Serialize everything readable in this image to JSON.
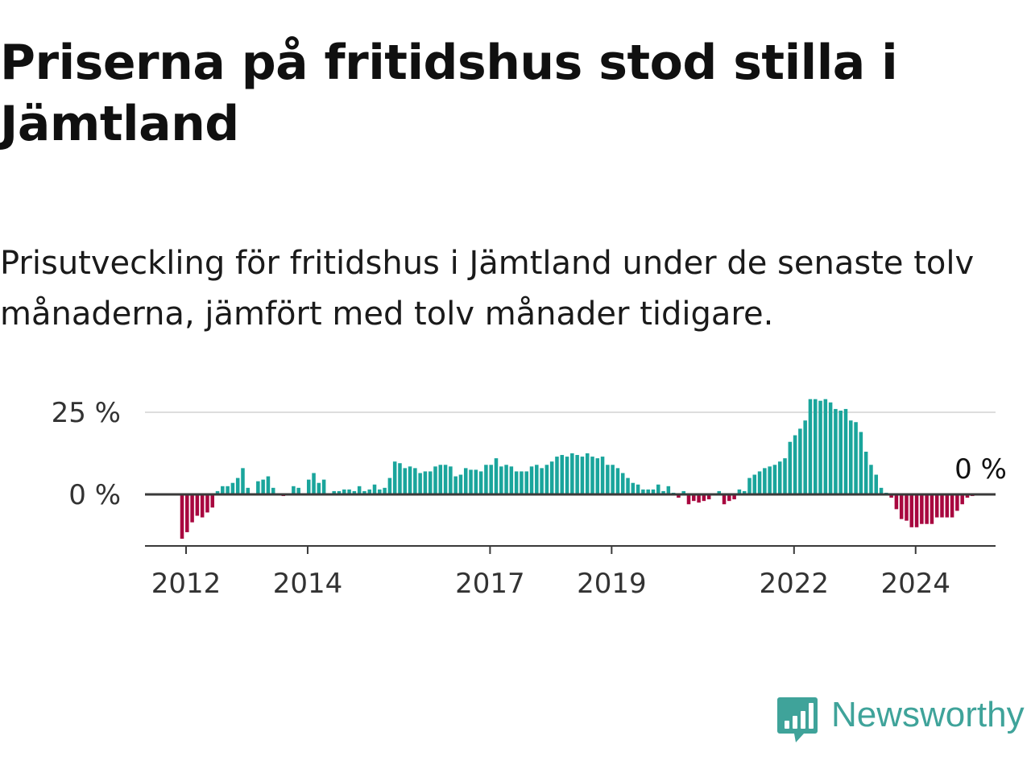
{
  "title": "Priserna på fritidshus stod stilla i Jämtland",
  "subtitle": "Prisutveckling för fritidshus i Jämtland under de senaste tolv månaderna, jämfört med tolv månader tidigare.",
  "brand": {
    "name": "Newsworthy",
    "icon": "bar-chart-speech-bubble-icon",
    "color": "#3fa39a"
  },
  "colors": {
    "positive": "#1aa59c",
    "negative": "#a8073f",
    "baseline": "#3a3a3a",
    "grid": "#dddddd"
  },
  "chart_data": {
    "type": "bar",
    "title": "",
    "xlabel": "",
    "ylabel": "",
    "x_start": "2012-01",
    "x_step": "month",
    "x_ticks": [
      "2012",
      "2014",
      "2017",
      "2019",
      "2022",
      "2024"
    ],
    "y_ticks": [
      {
        "value": 0,
        "label": "0 %"
      },
      {
        "value": 25,
        "label": "25 %"
      }
    ],
    "ylim": [
      -15,
      30
    ],
    "grid": true,
    "last_value_label": "0 %",
    "values": [
      -13.5,
      -11.5,
      -8.5,
      -6.5,
      -7.0,
      -5.5,
      -4.0,
      1.0,
      2.5,
      2.5,
      3.5,
      5.0,
      8.0,
      2.0,
      0.0,
      4.0,
      4.5,
      5.5,
      2.0,
      0.0,
      -0.5,
      0.0,
      2.5,
      2.0,
      0.0,
      4.5,
      6.5,
      3.5,
      4.5,
      0.0,
      1.0,
      1.0,
      1.5,
      1.5,
      1.0,
      2.5,
      1.0,
      1.5,
      3.0,
      1.5,
      2.0,
      5.0,
      10.0,
      9.5,
      8.0,
      8.5,
      8.0,
      6.5,
      7.0,
      7.0,
      8.5,
      9.0,
      9.0,
      8.5,
      5.5,
      6.0,
      8.0,
      7.5,
      7.5,
      7.0,
      9.0,
      9.0,
      11.0,
      8.5,
      9.0,
      8.5,
      7.0,
      7.0,
      7.0,
      8.5,
      9.0,
      8.0,
      9.0,
      10.0,
      11.5,
      12.0,
      11.5,
      12.5,
      12.0,
      11.5,
      12.5,
      11.5,
      11.0,
      11.5,
      9.0,
      9.0,
      8.0,
      6.5,
      5.0,
      3.5,
      3.0,
      1.5,
      1.5,
      1.5,
      3.0,
      1.0,
      2.5,
      0.5,
      -1.0,
      1.0,
      -3.0,
      -2.0,
      -2.5,
      -2.0,
      -1.5,
      0.0,
      1.0,
      -3.0,
      -2.0,
      -1.5,
      1.5,
      1.0,
      5.0,
      6.0,
      7.0,
      8.0,
      8.5,
      9.0,
      10.0,
      11.0,
      16.0,
      18.0,
      20.0,
      22.5,
      29.0,
      29.0,
      28.5,
      29.0,
      28.0,
      26.0,
      25.5,
      26.0,
      22.5,
      22.0,
      19.0,
      13.0,
      9.0,
      6.0,
      2.0,
      0.5,
      -1.0,
      -4.5,
      -7.5,
      -8.0,
      -10.0,
      -10.0,
      -9.0,
      -9.0,
      -9.0,
      -7.0,
      -7.0,
      -7.0,
      -7.0,
      -5.0,
      -3.0,
      -1.0,
      -0.5,
      0.0
    ]
  }
}
